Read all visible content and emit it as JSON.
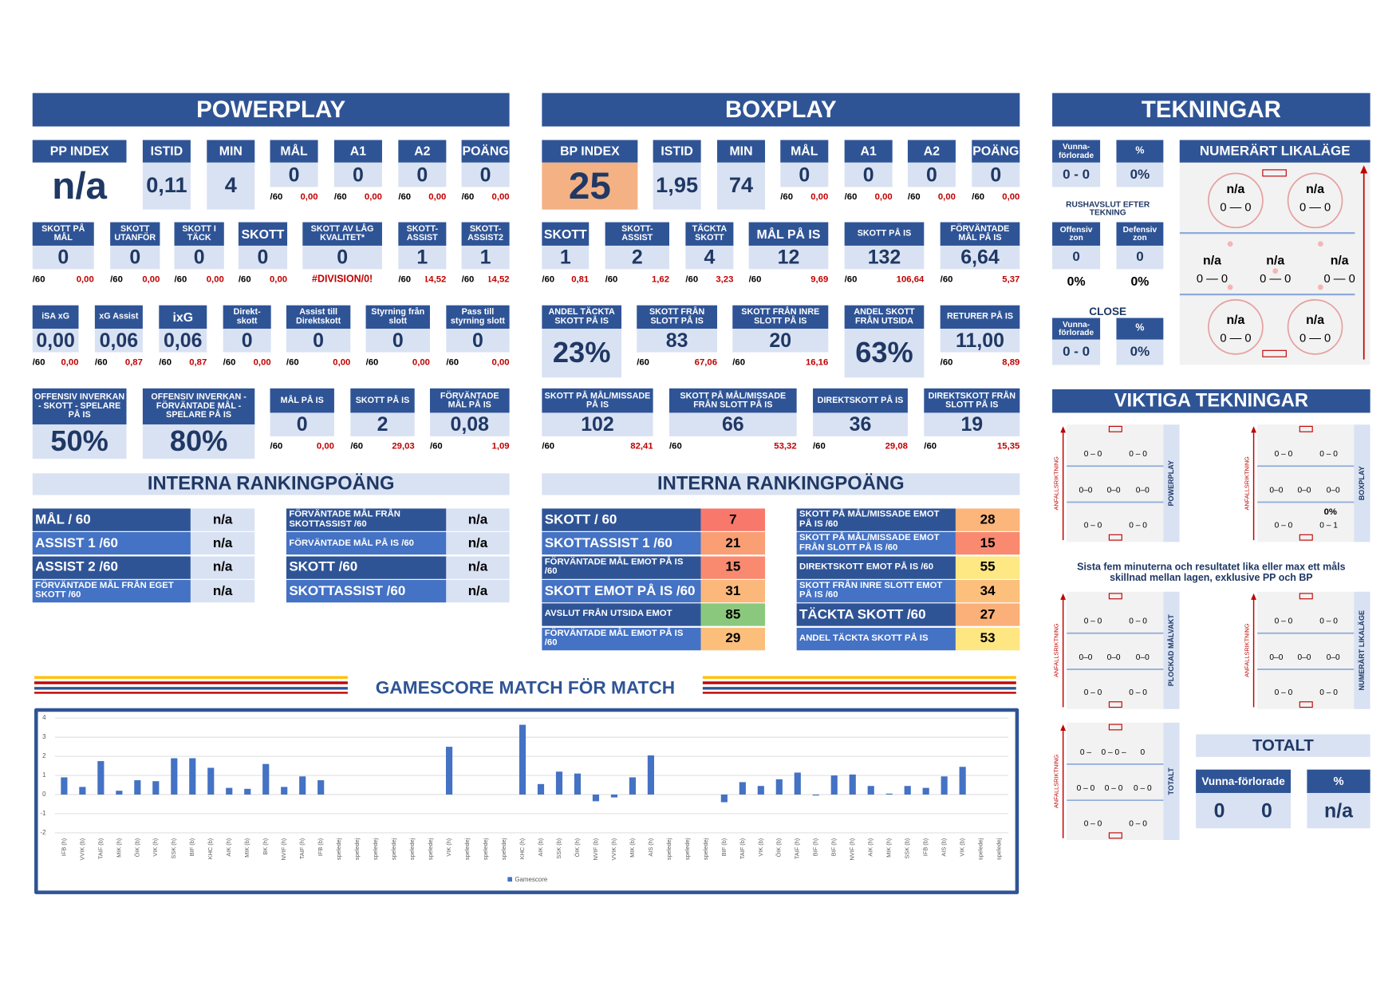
{
  "per60_label": "/60",
  "powerplay": {
    "title": "POWERPLAY",
    "cells": [
      {
        "label": "PP INDEX",
        "value": "n/a"
      },
      {
        "label": "ISTID",
        "value": "0,11"
      },
      {
        "label": "MIN",
        "value": "4"
      },
      {
        "label": "MÅL",
        "value": "0",
        "per60": "0,00"
      },
      {
        "label": "A1",
        "value": "0",
        "per60": "0,00"
      },
      {
        "label": "A2",
        "value": "0",
        "per60": "0,00"
      },
      {
        "label": "POÄNG",
        "value": "0",
        "per60": "0,00"
      },
      {
        "label": "SKOTT PÅ MÅL",
        "value": "0",
        "per60": "0,00"
      },
      {
        "label": "SKOTT UTANFÖR",
        "value": "0",
        "per60": "0,00"
      },
      {
        "label": "SKOTT I TÄCK",
        "value": "0",
        "per60": "0,00"
      },
      {
        "label": "SKOTT",
        "value": "0",
        "per60": "0,00"
      },
      {
        "label": "SKOTT AV LÅG KVALITET*",
        "value": "0",
        "error": "#DIVISION/0!"
      },
      {
        "label": "SKOTT-ASSIST",
        "value": "1",
        "per60": "14,52"
      },
      {
        "label": "SKOTT-ASSIST2",
        "value": "1",
        "per60": "14,52"
      },
      {
        "label": "iSA xG",
        "value": "0,00",
        "per60": "0,00"
      },
      {
        "label": "xG Assist",
        "value": "0,06",
        "per60": "0,87"
      },
      {
        "label": "ixG",
        "value": "0,06",
        "per60": "0,87"
      },
      {
        "label": "Direkt-skott",
        "value": "0",
        "per60": "0,00"
      },
      {
        "label": "Assist till Direktskott",
        "value": "0",
        "per60": "0,00"
      },
      {
        "label": "Styrning från slott",
        "value": "0",
        "per60": "0,00"
      },
      {
        "label": "Pass till styrning slott",
        "value": "0",
        "per60": "0,00"
      },
      {
        "label": "OFFENSIV INVERKAN - SKOTT - SPELARE PÅ IS",
        "value": "50%"
      },
      {
        "label": "OFFENSIV INVERKAN - FÖRVÄNTADE MÅL - SPELARE PÅ IS",
        "value": "80%"
      },
      {
        "label": "MÅL PÅ IS",
        "value": "0",
        "per60": "0,00"
      },
      {
        "label": "SKOTT PÅ IS",
        "value": "2",
        "per60": "29,03"
      },
      {
        "label": "FÖRVÄNTADE MÅL PÅ IS",
        "value": "0,08",
        "per60": "1,09"
      }
    ],
    "ranking": {
      "title": "INTERNA RANKINGPOÄNG",
      "rows": [
        {
          "label": "MÅL / 60",
          "value": "n/a"
        },
        {
          "label": "ASSIST 1 /60",
          "value": "n/a"
        },
        {
          "label": "ASSIST 2 /60",
          "value": "n/a"
        },
        {
          "label": "FÖRVÄNTADE MÅL FRÅN EGET SKOTT /60",
          "value": "n/a"
        },
        {
          "label": "FÖRVÄNTADE MÅL FRÅN SKOTTASSIST /60",
          "value": "n/a"
        },
        {
          "label": "FÖRVÄNTADE MÅL PÅ IS /60",
          "value": "n/a"
        },
        {
          "label": "SKOTT /60",
          "value": "n/a"
        },
        {
          "label": "SKOTTASSIST /60",
          "value": "n/a"
        }
      ]
    }
  },
  "boxplay": {
    "title": "BOXPLAY",
    "cells": [
      {
        "label": "BP INDEX",
        "value": "25"
      },
      {
        "label": "ISTID",
        "value": "1,95"
      },
      {
        "label": "MIN",
        "value": "74"
      },
      {
        "label": "MÅL",
        "value": "0",
        "per60": "0,00"
      },
      {
        "label": "A1",
        "value": "0",
        "per60": "0,00"
      },
      {
        "label": "A2",
        "value": "0",
        "per60": "0,00"
      },
      {
        "label": "POÄNG",
        "value": "0",
        "per60": "0,00"
      },
      {
        "label": "SKOTT",
        "value": "1",
        "per60": "0,81"
      },
      {
        "label": "SKOTT-ASSIST",
        "value": "2",
        "per60": "1,62"
      },
      {
        "label": "TÄCKTA SKOTT",
        "value": "4",
        "per60": "3,23"
      },
      {
        "label": "MÅL PÅ IS",
        "value": "12",
        "per60": "9,69"
      },
      {
        "label": "SKOTT PÅ IS",
        "value": "132",
        "per60": "106,64"
      },
      {
        "label": "FÖRVÄNTADE MÅL PÅ IS",
        "value": "6,64",
        "per60": "5,37"
      },
      {
        "label": "ANDEL TÄCKTA SKOTT PÅ IS",
        "value": "23%"
      },
      {
        "label": "SKOTT FRÅN SLOTT PÅ IS",
        "value": "83",
        "per60": "67,06"
      },
      {
        "label": "SKOTT FRÅN INRE SLOTT PÅ IS",
        "value": "20",
        "per60": "16,16"
      },
      {
        "label": "ANDEL SKOTT FRÅN UTSIDA",
        "value": "63%"
      },
      {
        "label": "RETURER PÅ IS",
        "value": "11,00",
        "per60": "8,89"
      },
      {
        "label": "SKOTT PÅ MÅL/MISSADE PÅ IS",
        "value": "102",
        "per60": "82,41"
      },
      {
        "label": "SKOTT PÅ MÅL/MISSADE FRÅN SLOTT PÅ IS",
        "value": "66",
        "per60": "53,32"
      },
      {
        "label": "DIREKTSKOTT PÅ IS",
        "value": "36",
        "per60": "29,08"
      },
      {
        "label": "DIREKTSKOTT FRÅN SLOTT PÅ IS",
        "value": "19",
        "per60": "15,35"
      }
    ],
    "ranking": {
      "title": "INTERNA RANKINGPOÄNG",
      "rows": [
        {
          "label": "SKOTT / 60",
          "value": 7,
          "color": "#f8786b"
        },
        {
          "label": "SKOTTASSIST 1 /60",
          "value": 21,
          "color": "#fa9e74"
        },
        {
          "label": "FÖRVÄNTADE MÅL EMOT PÅ IS /60",
          "value": 15,
          "color": "#f98a70"
        },
        {
          "label": "SKOTT EMOT PÅ IS /60",
          "value": 31,
          "color": "#fbb87a"
        },
        {
          "label": "AVSLUT FRÅN UTSIDA EMOT",
          "value": 85,
          "color": "#8ac97d"
        },
        {
          "label": "FÖRVÄNTADE MÅL EMOT PÅ IS /60",
          "value": 29,
          "color": "#fcbf7b"
        },
        {
          "label": "SKOTT PÅ MÅL/MISSADE EMOT PÅ IS /60",
          "value": 28,
          "color": "#fcb57a"
        },
        {
          "label": "SKOTT PÅ MÅL/MISSADE EMOT FRÅN SLOTT PÅ IS /60",
          "value": 15,
          "color": "#f98a70"
        },
        {
          "label": "DIREKTSKOTT EMOT PÅ IS /60",
          "value": 55,
          "color": "#fde883"
        },
        {
          "label": "SKOTT FRÅN INRE SLOTT EMOT PÅ IS /60",
          "value": 34,
          "color": "#fcc07c"
        },
        {
          "label": "TÄCKTA SKOTT /60",
          "value": 27,
          "color": "#fcb079"
        },
        {
          "label": "ANDEL TÄCKTA SKOTT PÅ IS",
          "value": 53,
          "color": "#fee682"
        }
      ]
    }
  },
  "tekningar": {
    "title": "TEKNINGAR",
    "faceoffs": {
      "labels": [
        "Vunna-förlorade",
        "%"
      ],
      "values": [
        "0 - 0",
        "0%"
      ]
    },
    "rush": {
      "title": "RUSHAVSLUT EFTER TEKNING",
      "labels": [
        "Offensiv zon",
        "Defensiv zon"
      ],
      "values": [
        "0",
        "0"
      ],
      "pct": [
        "0%",
        "0%"
      ]
    },
    "close": {
      "title": "CLOSE",
      "labels": [
        "Vunna-förlorade",
        "%"
      ],
      "values": [
        "0 - 0",
        "0%"
      ]
    },
    "even": {
      "title": "NUMERÄRT LIKALÄGE",
      "spots": [
        {
          "label": "n/a",
          "score": "0 — 0"
        },
        {
          "label": "n/a",
          "score": "0 — 0"
        },
        {
          "label": "n/a",
          "score": "0 — 0"
        },
        {
          "label": "n/a",
          "score": "0 — 0"
        },
        {
          "label": "n/a",
          "score": "0 — 0"
        },
        {
          "label": "n/a",
          "score": "0 — 0"
        },
        {
          "label": "n/a",
          "score": "0 — 0"
        }
      ]
    }
  },
  "viktiga": {
    "title": "VIKTIGA TEKNINGAR",
    "direction": "ANFALLSRIKTNING",
    "caption": "Sista fem minuterna och resultatet lika eller max ett måls skillnad mellan lagen, exklusive PP och BP",
    "rinks": [
      {
        "label": "POWERPLAY",
        "rows": [
          [
            "0 – 0",
            "0 – 0"
          ],
          [
            "0–0",
            "0–0",
            "0–0"
          ],
          [
            "0 – 0",
            "0 – 0"
          ]
        ]
      },
      {
        "label": "BOXPLAY",
        "rows": [
          [
            "0 – 0",
            "0 – 0"
          ],
          [
            "0–0",
            "0–0",
            "0–0"
          ],
          [
            "0 – 0",
            "0 – 1"
          ]
        ],
        "extra": "0%"
      },
      {
        "label": "PLOCKAD MÅLVAKT",
        "rows": [
          [
            "0 – 0",
            "0 – 0"
          ],
          [
            "0–0",
            "0–0",
            "0–0"
          ],
          [
            "0 – 0",
            "0 – 0"
          ]
        ]
      },
      {
        "label": "NUMERÄRT LIKALÄGE",
        "rows": [
          [
            "0 – 0",
            "0 – 0"
          ],
          [
            "0–0",
            "0–0",
            "0–0"
          ],
          [
            "0 – 0",
            "0 – 0"
          ]
        ]
      },
      {
        "label": "TOTALT",
        "rows": [
          [
            "0 –",
            "0 – 0 –",
            "0"
          ],
          [
            "0 – 0",
            "0 – 0",
            "0 – 0"
          ],
          [
            "0 – 0",
            "0 – 0"
          ]
        ]
      }
    ]
  },
  "total": {
    "title": "TOTALT",
    "labels": [
      "Vunna-förlorade",
      "%"
    ],
    "values": [
      "0",
      "0",
      "n/a"
    ]
  },
  "chart_data": {
    "type": "bar",
    "title": "GAMESCORE MATCH FÖR MATCH",
    "categories": [
      "IFB (h)",
      "VVIK (b)",
      "TAIF (b)",
      "MIK (h)",
      "ÖIK (b)",
      "VIK (h)",
      "SSK (h)",
      "BIF (b)",
      "KHC (b)",
      "AIK (h)",
      "MIK (b)",
      "BK (h)",
      "NVIF (h)",
      "TAIF (h)",
      "IFB (b)",
      "speledej",
      "speledej",
      "speledej",
      "speledej",
      "speledej",
      "speledej",
      "VIK (h)",
      "speledej",
      "speledej",
      "speledej",
      "KHC (h)",
      "AIK (b)",
      "SSK (b)",
      "ÖIK (h)",
      "NVIF (b)",
      "VVIK (h)",
      "MIK (b)",
      "AIS (h)",
      "speledej",
      "speledej",
      "speledej",
      "BIF (b)",
      "TAIF (b)",
      "VIK (b)",
      "ÖIK (b)",
      "TAIF (h)",
      "BIF (h)",
      "BIF (h)",
      "NVIF (h)",
      "AIK (h)",
      "MIK (h)",
      "SSK (b)",
      "IFB (b)",
      "AIS (b)",
      "VIK (b)",
      "speledej",
      "speledej"
    ],
    "series": [
      {
        "name": "Gamescore",
        "color": "#4472c4",
        "values": [
          0.9,
          0.4,
          1.75,
          0.2,
          0.75,
          0.7,
          1.9,
          1.9,
          1.4,
          0.35,
          0.3,
          1.6,
          0.4,
          0.95,
          0.75,
          null,
          null,
          null,
          null,
          null,
          null,
          2.5,
          null,
          null,
          null,
          3.65,
          0.55,
          1.2,
          1.1,
          -0.35,
          -0.15,
          0.9,
          2.05,
          null,
          null,
          null,
          -0.4,
          0.65,
          0.45,
          0.8,
          1.15,
          -0.05,
          1.0,
          1.05,
          0.45,
          0.05,
          0.45,
          0.35,
          0.95,
          1.45,
          null,
          null
        ]
      }
    ],
    "ylim": [
      -2,
      4
    ],
    "yticks": [
      -2,
      -1,
      0,
      1,
      2,
      3,
      4
    ],
    "grid": true,
    "legend": "bottom"
  }
}
